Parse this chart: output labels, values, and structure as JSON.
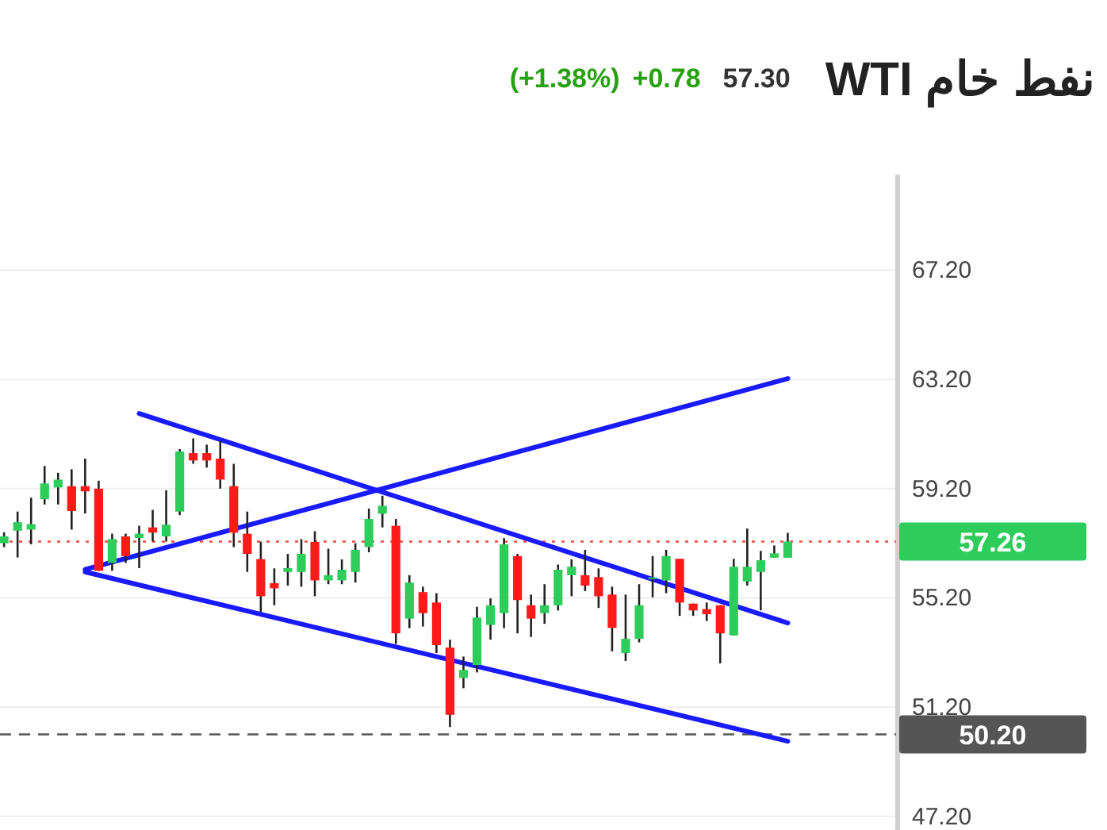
{
  "chart_data": {
    "type": "candlestick",
    "title": "نفط خام WTI",
    "annotations": [
      "57.30",
      "+0.78",
      "(+1.38%)"
    ],
    "categories": [
      null,
      null,
      null,
      null,
      null,
      null,
      null,
      null,
      null,
      null,
      null,
      null,
      null,
      null,
      null,
      null,
      null,
      null,
      null,
      null,
      null,
      null,
      null,
      null,
      null,
      null,
      null,
      null,
      null,
      null,
      null,
      null,
      null,
      null,
      null,
      null,
      null,
      null,
      null,
      null,
      null,
      null,
      null,
      null,
      null,
      null,
      null,
      null,
      null,
      null,
      null,
      null,
      null,
      null,
      null,
      null,
      null,
      null,
      null
    ],
    "ohlc": [
      [
        57.2,
        57.6,
        57.06,
        57.45
      ],
      [
        57.66,
        58.36,
        56.68,
        57.97
      ],
      [
        57.7,
        58.87,
        57.16,
        57.9
      ],
      [
        58.81,
        60.03,
        58.62,
        59.39
      ],
      [
        59.24,
        59.78,
        58.62,
        59.53
      ],
      [
        59.29,
        59.91,
        57.7,
        58.38
      ],
      [
        59.29,
        60.3,
        58.29,
        59.1
      ],
      [
        59.2,
        59.49,
        56.19,
        56.19
      ],
      [
        56.48,
        57.55,
        56.19,
        57.35
      ],
      [
        57.45,
        57.55,
        56.48,
        56.73
      ],
      [
        57.39,
        57.84,
        56.29,
        57.55
      ],
      [
        57.78,
        58.42,
        57.26,
        57.59
      ],
      [
        57.45,
        59.14,
        57.26,
        57.88
      ],
      [
        58.36,
        60.65,
        58.23,
        60.56
      ],
      [
        60.5,
        61.04,
        60.11,
        60.23
      ],
      [
        60.5,
        60.81,
        59.97,
        60.23
      ],
      [
        60.3,
        60.94,
        59.2,
        59.53
      ],
      [
        59.29,
        60.11,
        57.06,
        57.59
      ],
      [
        57.55,
        58.36,
        56.15,
        56.81
      ],
      [
        56.62,
        57.26,
        54.68,
        55.26
      ],
      [
        55.74,
        56.28,
        54.93,
        55.55
      ],
      [
        56.15,
        56.81,
        55.65,
        56.29
      ],
      [
        56.15,
        57.35,
        55.61,
        56.81
      ],
      [
        57.25,
        57.64,
        55.26,
        55.84
      ],
      [
        55.84,
        57.0,
        55.7,
        56.03
      ],
      [
        55.84,
        56.61,
        55.7,
        56.23
      ],
      [
        56.15,
        57.2,
        55.76,
        56.96
      ],
      [
        57.06,
        58.47,
        56.87,
        58.09
      ],
      [
        58.28,
        58.94,
        57.78,
        58.57
      ],
      [
        57.84,
        58.09,
        53.51,
        53.9
      ],
      [
        54.44,
        56.03,
        54.09,
        55.76
      ],
      [
        55.41,
        55.61,
        54.15,
        54.64
      ],
      [
        55.03,
        55.37,
        53.18,
        53.47
      ],
      [
        53.38,
        53.67,
        50.47,
        50.92
      ],
      [
        52.27,
        53.05,
        51.89,
        52.56
      ],
      [
        52.74,
        54.87,
        52.47,
        54.48
      ],
      [
        54.21,
        55.18,
        53.67,
        54.93
      ],
      [
        54.64,
        57.39,
        54.09,
        57.16
      ],
      [
        56.73,
        56.81,
        53.9,
        55.12
      ],
      [
        54.93,
        55.32,
        53.77,
        54.44
      ],
      [
        54.64,
        55.7,
        54.25,
        54.93
      ],
      [
        54.93,
        56.42,
        54.74,
        56.23
      ],
      [
        56.03,
        56.61,
        55.26,
        56.34
      ],
      [
        56.03,
        56.96,
        55.45,
        55.65
      ],
      [
        55.96,
        56.28,
        54.83,
        55.26
      ],
      [
        55.32,
        55.61,
        53.24,
        54.1
      ],
      [
        53.18,
        55.32,
        52.89,
        53.7
      ],
      [
        53.7,
        55.7,
        53.57,
        54.93
      ],
      [
        55.9,
        56.73,
        55.22,
        55.95
      ],
      [
        55.84,
        56.96,
        55.37,
        56.73
      ],
      [
        56.63,
        56.63,
        54.54,
        55.03
      ],
      [
        54.99,
        54.99,
        54.54,
        54.74
      ],
      [
        54.79,
        55.03,
        54.35,
        54.6
      ],
      [
        54.93,
        54.93,
        52.8,
        53.9
      ],
      [
        53.82,
        56.63,
        53.82,
        56.34
      ],
      [
        55.8,
        57.74,
        55.65,
        56.34
      ],
      [
        56.15,
        56.92,
        54.74,
        56.58
      ],
      [
        56.67,
        57.12,
        56.67,
        56.83
      ],
      [
        56.67,
        57.58,
        56.67,
        57.26
      ]
    ],
    "series": [
      {
        "type": "line",
        "color": "#1a1aff",
        "values": [
          null,
          null,
          null,
          null,
          null,
          null,
          null,
          null,
          null,
          null,
          61.95,
          null,
          null,
          null,
          null,
          null,
          null,
          null,
          null,
          null,
          null,
          null,
          null,
          null,
          null,
          null,
          null,
          null,
          null,
          null,
          null,
          null,
          null,
          null,
          null,
          null,
          null,
          null,
          null,
          null,
          null,
          null,
          null,
          null,
          null,
          null,
          null,
          null,
          null,
          null,
          null,
          null,
          null,
          null,
          null,
          null,
          null,
          null,
          54.28
        ]
      },
      {
        "type": "line",
        "color": "#1a1aff",
        "values": [
          null,
          null,
          null,
          null,
          null,
          null,
          56.15,
          null,
          null,
          null,
          null,
          null,
          null,
          null,
          null,
          null,
          null,
          null,
          null,
          null,
          null,
          null,
          null,
          null,
          null,
          null,
          null,
          null,
          null,
          null,
          null,
          null,
          null,
          null,
          null,
          null,
          null,
          null,
          null,
          null,
          null,
          null,
          null,
          null,
          null,
          null,
          null,
          null,
          null,
          null,
          null,
          null,
          null,
          null,
          null,
          null,
          null,
          null,
          49.95
        ]
      },
      {
        "type": "line",
        "color": "#1a1aff",
        "values": [
          null,
          null,
          null,
          null,
          null,
          null,
          56.24,
          null,
          null,
          null,
          null,
          null,
          null,
          null,
          null,
          null,
          null,
          null,
          null,
          null,
          null,
          null,
          null,
          null,
          null,
          null,
          null,
          null,
          null,
          null,
          null,
          null,
          null,
          null,
          null,
          null,
          null,
          null,
          null,
          null,
          null,
          null,
          null,
          null,
          null,
          null,
          null,
          null,
          null,
          null,
          null,
          null,
          null,
          null,
          null,
          null,
          null,
          null,
          63.23
        ]
      }
    ],
    "ref_lines": [
      {
        "axis": "y",
        "value": 57.26,
        "label": "57.26",
        "color": "#f04a3a",
        "line_style": "dotted"
      },
      {
        "axis": "y",
        "value": 50.2,
        "label": "50.20",
        "color": "#555555",
        "line_style": "dashed"
      }
    ],
    "ylim": [
      46.7,
      70.7
    ],
    "yticks": [
      {
        "value": 47.2,
        "label": "47.20"
      },
      {
        "value": 51.2,
        "label": "51.20"
      },
      {
        "value": 55.2,
        "label": "55.20"
      },
      {
        "value": 59.2,
        "label": "59.20"
      },
      {
        "value": 63.2,
        "label": "63.20"
      },
      {
        "value": 67.2,
        "label": "67.20"
      }
    ],
    "tick_labels": "y",
    "grid": "y",
    "marker": "none"
  }
}
